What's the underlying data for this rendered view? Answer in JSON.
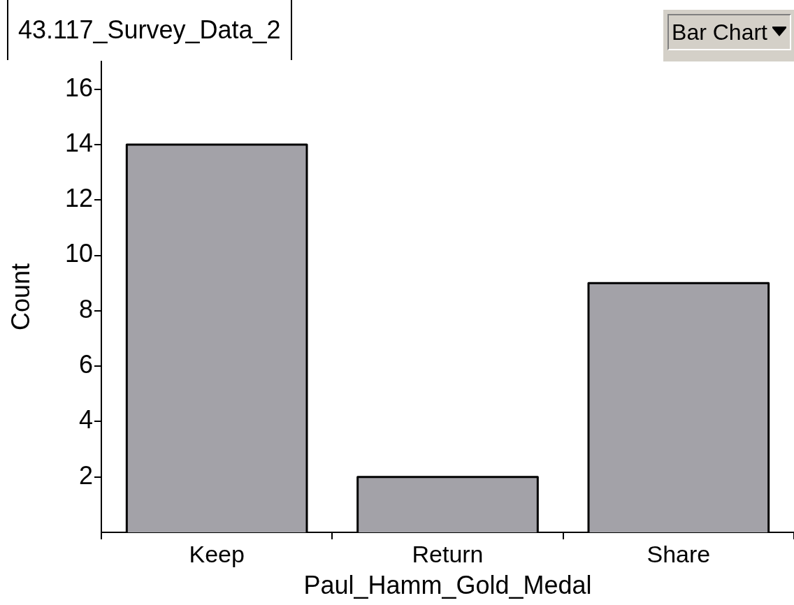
{
  "chart_data": {
    "type": "bar",
    "title": "43.117_Survey_Data_2",
    "xlabel": "Paul_Hamm_Gold_Medal",
    "ylabel": "Count",
    "categories": [
      "Keep",
      "Return",
      "Share"
    ],
    "values": [
      14,
      2,
      9
    ],
    "color": "#a3a2a8",
    "ylim": [
      0,
      17
    ],
    "yticks": [
      2,
      4,
      6,
      8,
      10,
      12,
      14,
      16
    ],
    "grid": false,
    "legend": false,
    "annotations": [
      "Bar Chart"
    ]
  }
}
